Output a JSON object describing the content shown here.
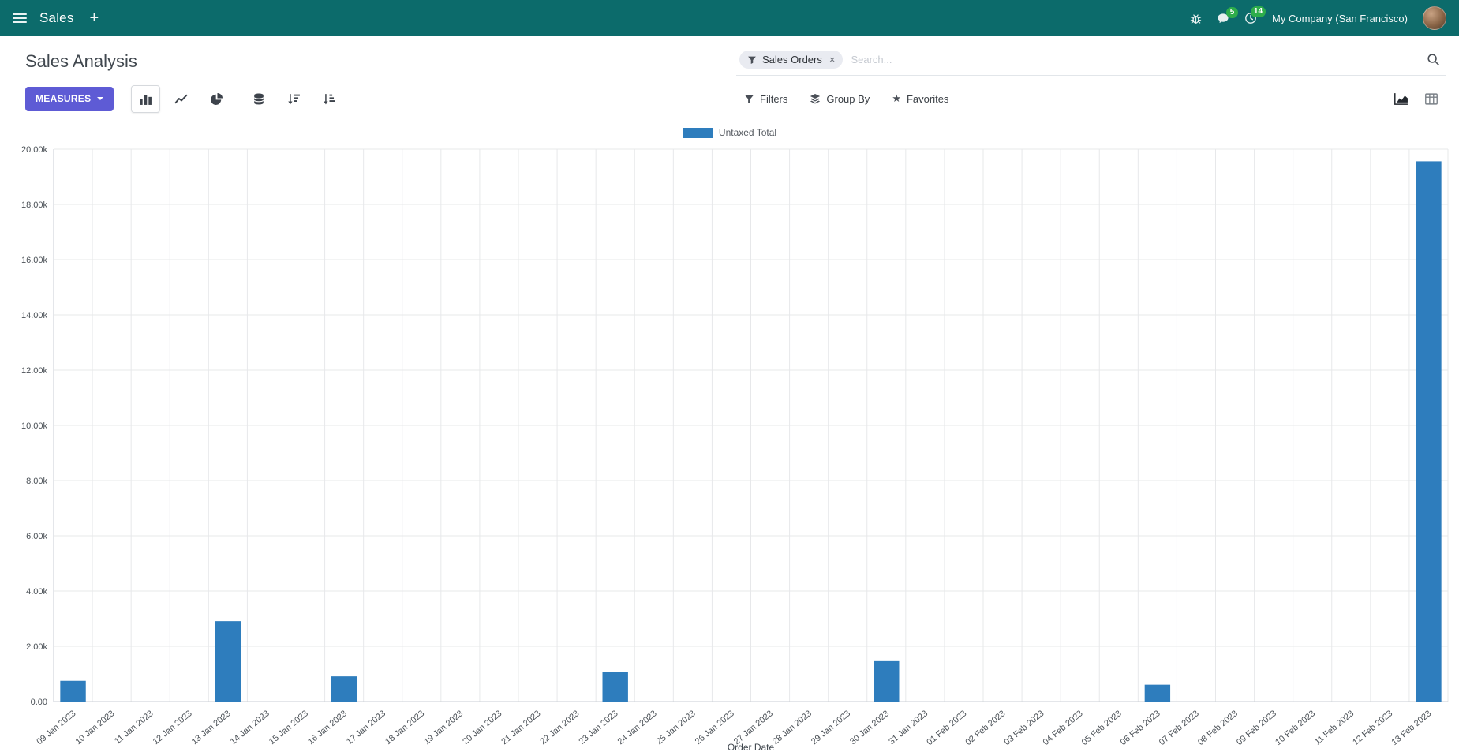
{
  "colors": {
    "navbar_bg": "#0c6b6b",
    "accent": "#5e5bd5",
    "badge_green": "#2ead4b",
    "bar_blue": "#2e7dbd"
  },
  "icons": {
    "star": "★",
    "close": "×"
  },
  "navbar": {
    "menu_label": "Sales",
    "plus_label": "+",
    "messages_badge": "5",
    "activities_badge": "14",
    "company": "My Company (San Francisco)"
  },
  "control_panel": {
    "breadcrumb": "Sales Analysis",
    "measures_label": "MEASURES",
    "search": {
      "facet": "Sales Orders",
      "placeholder": "Search..."
    },
    "filters_label": "Filters",
    "group_by_label": "Group By",
    "favorites_label": "Favorites"
  },
  "chart_data": {
    "type": "bar",
    "title": "",
    "series_name": "Untaxed Total",
    "xlabel": "Order Date",
    "ylabel": "",
    "ylim": [
      0,
      20000
    ],
    "ytick_step": 2000,
    "ytick_labels": [
      "0.00",
      "2.00k",
      "4.00k",
      "6.00k",
      "8.00k",
      "10.00k",
      "12.00k",
      "14.00k",
      "16.00k",
      "18.00k",
      "20.00k"
    ],
    "grid": true,
    "legend_position": "top-center",
    "bar_color": "#2e7dbd",
    "categories": [
      "09 Jan 2023",
      "10 Jan 2023",
      "11 Jan 2023",
      "12 Jan 2023",
      "13 Jan 2023",
      "14 Jan 2023",
      "15 Jan 2023",
      "16 Jan 2023",
      "17 Jan 2023",
      "18 Jan 2023",
      "19 Jan 2023",
      "20 Jan 2023",
      "21 Jan 2023",
      "22 Jan 2023",
      "23 Jan 2023",
      "24 Jan 2023",
      "25 Jan 2023",
      "26 Jan 2023",
      "27 Jan 2023",
      "28 Jan 2023",
      "29 Jan 2023",
      "30 Jan 2023",
      "31 Jan 2023",
      "01 Feb 2023",
      "02 Feb 2023",
      "03 Feb 2023",
      "04 Feb 2023",
      "05 Feb 2023",
      "06 Feb 2023",
      "07 Feb 2023",
      "08 Feb 2023",
      "09 Feb 2023",
      "10 Feb 2023",
      "11 Feb 2023",
      "12 Feb 2023",
      "13 Feb 2023"
    ],
    "values": [
      750,
      0,
      0,
      0,
      2910,
      0,
      0,
      910,
      0,
      0,
      0,
      0,
      0,
      0,
      1080,
      0,
      0,
      0,
      0,
      0,
      0,
      1490,
      0,
      0,
      0,
      0,
      0,
      0,
      610,
      0,
      0,
      0,
      0,
      0,
      0,
      19560
    ]
  }
}
